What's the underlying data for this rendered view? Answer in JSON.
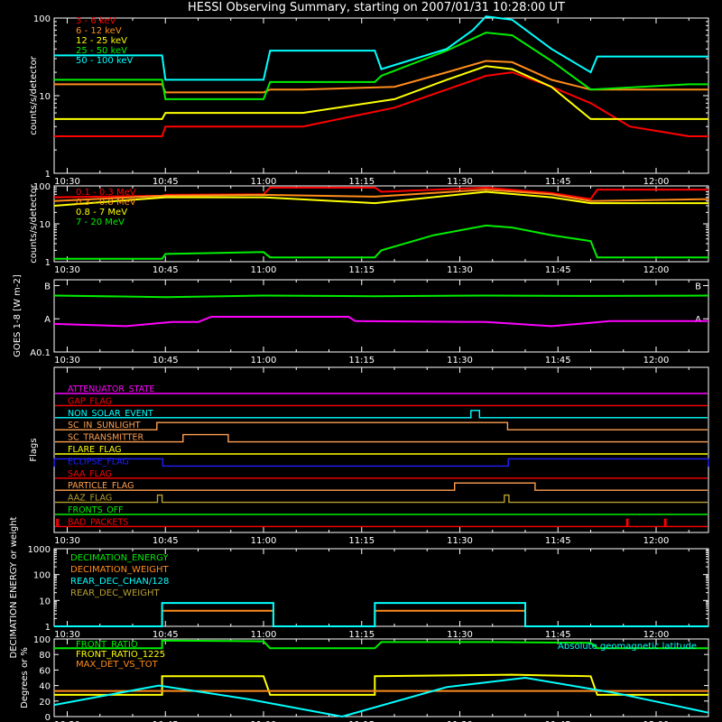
{
  "title": "HESSI Observing Summary, starting on 2007/01/31 10:28:00 UT",
  "time_ticks": [
    "10:30",
    "10:45",
    "11:00",
    "11:15",
    "11:30",
    "11:45",
    "12:00"
  ],
  "colors": {
    "red": "#ff0000",
    "orange": "#ff8c1a",
    "yellow": "#ffff00",
    "green": "#00ee00",
    "cyan": "#00ffff",
    "magenta": "#ff00ff",
    "blue": "#2020ff",
    "tan": "#ff9f50",
    "olive": "#b8a030",
    "axis": "#ffffff"
  },
  "chart_data": [
    {
      "type": "line",
      "id": "hessi-rates",
      "ylabel": "counts/s/detector",
      "yscale": "log",
      "ylim": [
        1,
        100
      ],
      "y_ticks": [
        "1",
        "10",
        "100"
      ],
      "series": [
        {
          "name": "3 - 6 keV",
          "color": "red",
          "points": [
            [
              28,
              3
            ],
            [
              44.5,
              3
            ],
            [
              45,
              4
            ],
            [
              60,
              4
            ],
            [
              66,
              4
            ],
            [
              80,
              7
            ],
            [
              88,
              12
            ],
            [
              94,
              18
            ],
            [
              98,
              20
            ],
            [
              104,
              13
            ],
            [
              110,
              8
            ],
            [
              116,
              4
            ],
            [
              125,
              3
            ],
            [
              128,
              3
            ]
          ]
        },
        {
          "name": "6 - 12 keV",
          "color": "orange",
          "points": [
            [
              28,
              14
            ],
            [
              44.5,
              14
            ],
            [
              45,
              11
            ],
            [
              60,
              11
            ],
            [
              61,
              12
            ],
            [
              66,
              12
            ],
            [
              80,
              13
            ],
            [
              88,
              20
            ],
            [
              94,
              28
            ],
            [
              98,
              27
            ],
            [
              104,
              16
            ],
            [
              110,
              12
            ],
            [
              125,
              12
            ],
            [
              128,
              12
            ]
          ]
        },
        {
          "name": "12 - 25 keV",
          "color": "yellow",
          "points": [
            [
              28,
              5
            ],
            [
              44.5,
              5
            ],
            [
              45,
              6
            ],
            [
              60,
              6
            ],
            [
              66,
              6
            ],
            [
              80,
              9
            ],
            [
              88,
              16
            ],
            [
              94,
              24
            ],
            [
              98,
              22
            ],
            [
              104,
              13
            ],
            [
              110,
              5
            ],
            [
              125,
              5
            ],
            [
              128,
              5
            ]
          ]
        },
        {
          "name": "25 - 50 keV",
          "color": "green",
          "points": [
            [
              28,
              16
            ],
            [
              44.5,
              16
            ],
            [
              45,
              9
            ],
            [
              60,
              9
            ],
            [
              61,
              15
            ],
            [
              77,
              15
            ],
            [
              78,
              18
            ],
            [
              88,
              38
            ],
            [
              94,
              65
            ],
            [
              98,
              60
            ],
            [
              104,
              28
            ],
            [
              110,
              12
            ],
            [
              125,
              14
            ],
            [
              128,
              14
            ]
          ]
        },
        {
          "name": "50 - 100 keV",
          "color": "cyan",
          "points": [
            [
              28,
              33
            ],
            [
              44.5,
              33
            ],
            [
              45,
              16
            ],
            [
              60,
              16
            ],
            [
              61,
              38
            ],
            [
              77,
              38
            ],
            [
              78,
              22
            ],
            [
              88,
              40
            ],
            [
              92,
              70
            ],
            [
              94,
              105
            ],
            [
              98,
              95
            ],
            [
              104,
              40
            ],
            [
              110,
              20
            ],
            [
              111,
              32
            ],
            [
              128,
              32
            ]
          ]
        }
      ]
    },
    {
      "type": "line",
      "id": "hessi-high-energy",
      "ylabel": "counts/s/detector",
      "yscale": "log",
      "ylim": [
        1,
        100
      ],
      "y_ticks": [
        "1",
        "10",
        "100"
      ],
      "series": [
        {
          "name": "0.1 - 0.3 MeV",
          "color": "red",
          "points": [
            [
              28,
              50
            ],
            [
              44.5,
              55
            ],
            [
              45,
              58
            ],
            [
              60,
              60
            ],
            [
              61,
              90
            ],
            [
              77,
              90
            ],
            [
              78,
              70
            ],
            [
              94,
              90
            ],
            [
              104,
              65
            ],
            [
              110,
              45
            ],
            [
              111,
              80
            ],
            [
              128,
              80
            ]
          ]
        },
        {
          "name": "0.3 - 0.8 MeV",
          "color": "orange",
          "points": [
            [
              28,
              40
            ],
            [
              45,
              55
            ],
            [
              60,
              58
            ],
            [
              77,
              52
            ],
            [
              94,
              80
            ],
            [
              104,
              60
            ],
            [
              110,
              40
            ],
            [
              128,
              45
            ]
          ]
        },
        {
          "name": "0.8 - 7 MeV",
          "color": "yellow",
          "points": [
            [
              28,
              30
            ],
            [
              45,
              50
            ],
            [
              60,
              50
            ],
            [
              77,
              35
            ],
            [
              94,
              70
            ],
            [
              104,
              50
            ],
            [
              110,
              35
            ],
            [
              128,
              35
            ]
          ]
        },
        {
          "name": "7 - 20 MeV",
          "color": "green",
          "points": [
            [
              28,
              1.2
            ],
            [
              44.5,
              1.2
            ],
            [
              45,
              1.6
            ],
            [
              60,
              1.8
            ],
            [
              61,
              1.3
            ],
            [
              77,
              1.3
            ],
            [
              78,
              2
            ],
            [
              86,
              5
            ],
            [
              94,
              9
            ],
            [
              98,
              8
            ],
            [
              104,
              5
            ],
            [
              110,
              3.5
            ],
            [
              111,
              1.3
            ],
            [
              128,
              1.3
            ]
          ]
        }
      ]
    },
    {
      "type": "line",
      "id": "goes-flux",
      "ylabel": "GOES 1-8 [W m-2]",
      "yscale": "log",
      "y_ticks": [
        "A0.1",
        "A",
        "B"
      ],
      "ylim": [
        1e-09,
        1.5e-07
      ],
      "series": [
        {
          "color": "green",
          "points": [
            [
              28,
              5e-08
            ],
            [
              45,
              4.5e-08
            ],
            [
              60,
              5e-08
            ],
            [
              77,
              4.8e-08
            ],
            [
              94,
              5e-08
            ],
            [
              110,
              4.9e-08
            ],
            [
              128,
              5e-08
            ]
          ]
        },
        {
          "color": "magenta",
          "points": [
            [
              28,
              7e-09
            ],
            [
              39,
              6e-09
            ],
            [
              46,
              8e-09
            ],
            [
              50,
              8e-09
            ],
            [
              52,
              1.15e-08
            ],
            [
              73,
              1.15e-08
            ],
            [
              74,
              8.5e-09
            ],
            [
              94,
              8e-09
            ],
            [
              104,
              6e-09
            ],
            [
              113,
              8.5e-09
            ],
            [
              128,
              8.5e-09
            ]
          ]
        }
      ]
    },
    {
      "type": "line",
      "id": "decimation",
      "ylabel": "DECIMATION ENERGY or weight",
      "yscale": "log",
      "ylim": [
        1,
        1000
      ],
      "y_ticks": [
        "1",
        "10",
        "100",
        "1000"
      ],
      "series": [
        {
          "name": "DECIMATION_ENERGY",
          "color": "green",
          "points": []
        },
        {
          "name": "DECIMATION_WEIGHT",
          "color": "orange",
          "points": [
            [
              28,
              1
            ],
            [
              44.5,
              1
            ],
            [
              44.5,
              4
            ],
            [
              61.5,
              4
            ],
            [
              61.5,
              1
            ],
            [
              77,
              1
            ],
            [
              77,
              4
            ],
            [
              100,
              4
            ],
            [
              100,
              1
            ],
            [
              128,
              1
            ]
          ]
        },
        {
          "name": "REAR_DEC_CHAN/128",
          "color": "cyan",
          "points": [
            [
              28,
              1
            ],
            [
              44.5,
              1
            ],
            [
              44.5,
              8
            ],
            [
              61.5,
              8
            ],
            [
              61.5,
              1
            ],
            [
              77,
              1
            ],
            [
              77,
              8
            ],
            [
              100,
              8
            ],
            [
              100,
              1
            ],
            [
              128,
              1
            ]
          ]
        },
        {
          "name": "REAR_DEC_WEIGHT",
          "color": "olive",
          "points": []
        }
      ]
    },
    {
      "type": "line",
      "id": "orbit-ratios",
      "ylabel": "Degrees or %",
      "ylim": [
        0,
        100
      ],
      "y_ticks": [
        "0",
        "20",
        "40",
        "60",
        "80",
        "100"
      ],
      "series": [
        {
          "name": "FRONT_RATIO",
          "color": "green",
          "points": [
            [
              28,
              88
            ],
            [
              44.5,
              88
            ],
            [
              44.5,
              98
            ],
            [
              60,
              97
            ],
            [
              61,
              88
            ],
            [
              77,
              88
            ],
            [
              78,
              96
            ],
            [
              94,
              96
            ],
            [
              110,
              95
            ],
            [
              111,
              88
            ],
            [
              128,
              88
            ]
          ]
        },
        {
          "name": "FRONT_RATIO_1225",
          "color": "yellow",
          "points": [
            [
              28,
              28
            ],
            [
              44.5,
              28
            ],
            [
              44.5,
              52
            ],
            [
              60,
              52
            ],
            [
              61,
              28
            ],
            [
              77,
              28
            ],
            [
              77,
              52
            ],
            [
              98,
              54
            ],
            [
              110,
              52
            ],
            [
              111,
              28
            ],
            [
              128,
              28
            ]
          ]
        },
        {
          "name": "MAX_DET_VS_TOT",
          "color": "orange",
          "points": [
            [
              28,
              33
            ],
            [
              128,
              33
            ]
          ]
        },
        {
          "name": "Absolute geomagnetic latitude",
          "color": "cyan",
          "points": [
            [
              28,
              15
            ],
            [
              44,
              40
            ],
            [
              58,
              22
            ],
            [
              72,
              0
            ],
            [
              88,
              38
            ],
            [
              100,
              50
            ],
            [
              114,
              30
            ],
            [
              128,
              5
            ]
          ]
        }
      ]
    }
  ],
  "flags": {
    "ylabel": "Flags",
    "rows": [
      {
        "name": "ATTENUATOR_STATE",
        "color": "magenta",
        "pulses": []
      },
      {
        "name": "GAP_FLAG",
        "color": "red",
        "pulses": []
      },
      {
        "name": "NON_SOLAR_EVENT",
        "color": "cyan",
        "pulses": [
          [
            91.7,
            93
          ]
        ]
      },
      {
        "name": "SC_IN_SUNLIGHT",
        "color": "tan",
        "pulses": [
          [
            43.7,
            97.3
          ]
        ]
      },
      {
        "name": "SC_TRANSMITTER",
        "color": "tan",
        "pulses": [
          [
            47.7,
            54.6
          ]
        ]
      },
      {
        "name": "FLARE_FLAG",
        "color": "yellow",
        "pulses": []
      },
      {
        "name": "ECLIPSE_FLAG",
        "color": "blue",
        "pulses": [
          [
            28,
            44.6
          ],
          [
            97.4,
            128
          ]
        ]
      },
      {
        "name": "SAA_FLAG",
        "color": "red",
        "pulses": []
      },
      {
        "name": "PARTICLE_FLAG",
        "color": "tan",
        "pulses": [
          [
            89.2,
            101.5
          ]
        ]
      },
      {
        "name": "AAZ_FLAG",
        "color": "olive",
        "pulses": [
          [
            43.8,
            44.5
          ],
          [
            96.8,
            97.5
          ]
        ]
      },
      {
        "name": "FRONTS_OFF",
        "color": "green",
        "pulses": []
      },
      {
        "name": "BAD_PACKETS",
        "color": "red",
        "pulses": [
          [
            28.4,
            28.6
          ],
          [
            115.5,
            115.7
          ],
          [
            121.3,
            121.5
          ]
        ]
      }
    ]
  }
}
